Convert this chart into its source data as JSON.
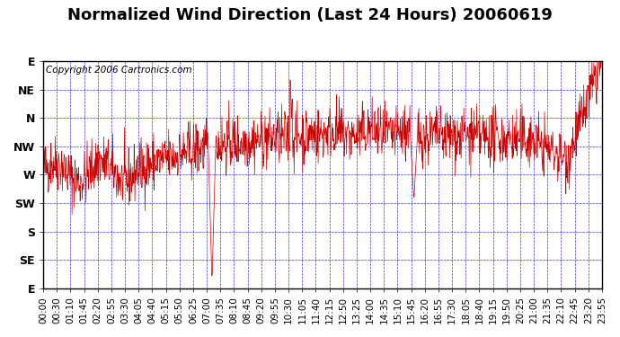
{
  "title": "Normalized Wind Direction (Last 24 Hours) 20060619",
  "copyright_text": "Copyright 2006 Cartronics.com",
  "y_labels": [
    "E",
    "SE",
    "S",
    "SW",
    "W",
    "NW",
    "N",
    "NE",
    "E"
  ],
  "y_values": [
    0,
    45,
    90,
    135,
    180,
    225,
    270,
    315,
    360
  ],
  "x_tick_labels": [
    "00:00",
    "00:30",
    "01:10",
    "01:45",
    "02:20",
    "02:55",
    "03:30",
    "04:05",
    "04:40",
    "05:15",
    "05:50",
    "06:25",
    "07:00",
    "07:35",
    "08:10",
    "08:45",
    "09:20",
    "09:55",
    "10:30",
    "11:05",
    "11:40",
    "12:15",
    "12:50",
    "13:25",
    "14:00",
    "14:35",
    "15:10",
    "15:45",
    "16:20",
    "16:55",
    "17:30",
    "18:05",
    "18:40",
    "19:15",
    "19:50",
    "20:25",
    "21:00",
    "21:35",
    "22:10",
    "22:45",
    "23:20",
    "23:55"
  ],
  "line_color": "#CC0000",
  "grid_color": "#0000CC",
  "background_color": "#FFFFFF",
  "title_fontsize": 13,
  "axis_label_fontsize": 9,
  "copyright_fontsize": 7.5
}
